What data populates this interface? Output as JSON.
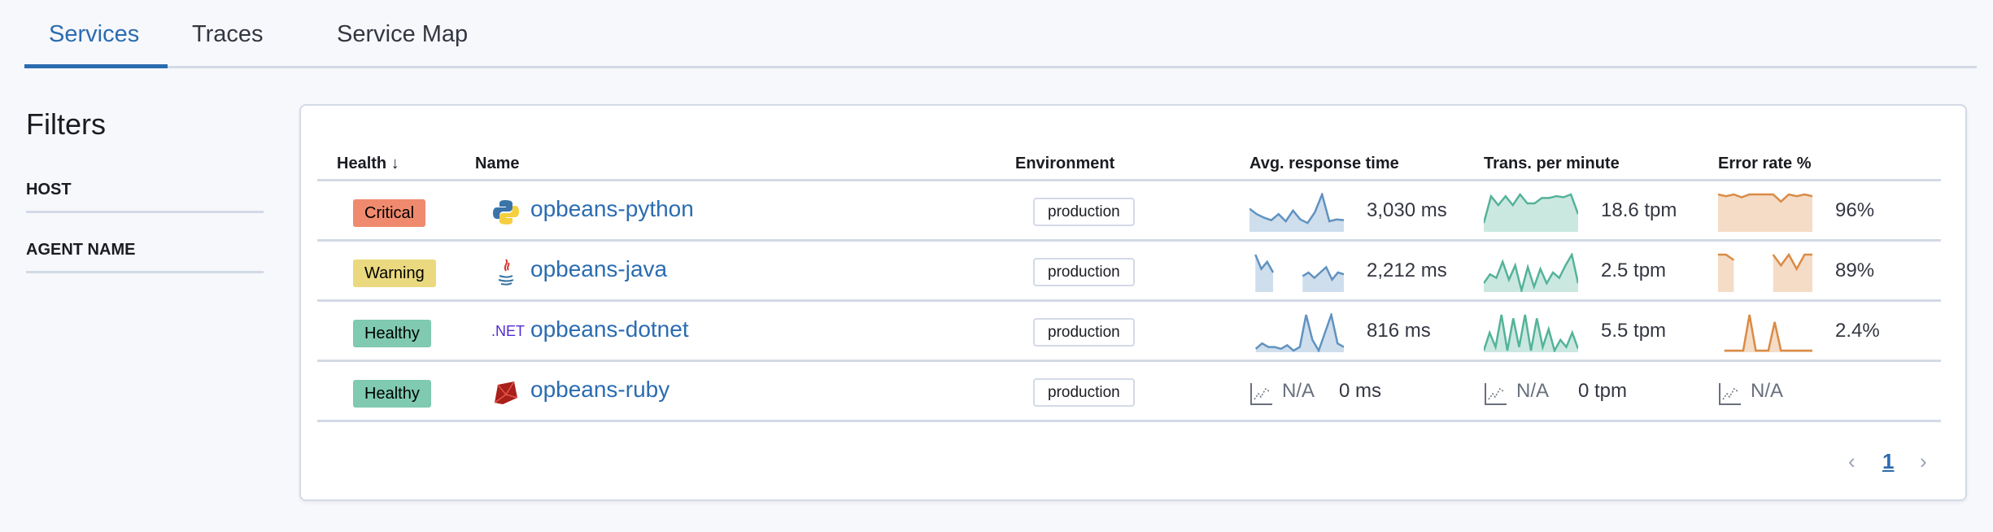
{
  "tabs": [
    {
      "label": "Services",
      "active": true
    },
    {
      "label": "Traces"
    },
    {
      "label": "Service Map"
    }
  ],
  "filters": {
    "title": "Filters",
    "items": [
      "HOST",
      "AGENT NAME"
    ]
  },
  "table": {
    "headers": {
      "health": "Health",
      "sort_icon": "arrow-down-icon",
      "name": "Name",
      "environment": "Environment",
      "avg": "Avg. response time",
      "tpm": "Trans. per minute",
      "err": "Error rate %"
    },
    "colors": {
      "avg": "#6092c0",
      "tpm": "#54b399",
      "err": "#da8b45",
      "critical": "#f08a6e",
      "warning": "#ebd97f",
      "healthy": "#7fcab0",
      "link": "#2b6cb0"
    },
    "rows": [
      {
        "health": "Critical",
        "health_color": "#f08a6e",
        "icon": "python-icon",
        "name": "opbeans-python",
        "environment": "production",
        "avg": "3,030 ms",
        "tpm": "18.6 tpm",
        "err": "96%",
        "avg_spark": [
          0.6,
          0.45,
          0.35,
          0.28,
          0.45,
          0.25,
          0.55,
          0.3,
          0.2,
          0.5,
          1,
          0.25,
          0.3,
          0.28
        ],
        "tpm_spark": [
          0.2,
          0.95,
          0.7,
          0.95,
          0.7,
          1,
          0.75,
          0.75,
          0.9,
          0.9,
          0.95,
          0.92,
          1,
          0.45
        ],
        "err_spark": [
          1,
          0.95,
          1,
          0.92,
          1,
          1,
          1,
          1,
          0.8,
          1,
          0.95,
          1,
          0.95
        ]
      },
      {
        "health": "Warning",
        "health_color": "#ebd97f",
        "icon": "java-icon",
        "name": "opbeans-java",
        "environment": "production",
        "avg": "2,212 ms",
        "tpm": "2.5 tpm",
        "err": "89%",
        "avg_spark": [
          null,
          1,
          0.6,
          0.8,
          0.5,
          null,
          null,
          null,
          null,
          0.4,
          0.5,
          0.35,
          0.5,
          0.65,
          0.3,
          0.5,
          0.45
        ],
        "tpm_spark": [
          0.2,
          0.45,
          0.35,
          0.8,
          0.3,
          0.7,
          0,
          0.65,
          0.1,
          0.6,
          0.2,
          0.5,
          0.35,
          0.7,
          1,
          0.2
        ],
        "err_spark": [
          1,
          1,
          0.85,
          null,
          null,
          null,
          null,
          1,
          0.7,
          1,
          0.6,
          1,
          1
        ],
        "err_gaps": true
      },
      {
        "health": "Healthy",
        "health_color": "#7fcab0",
        "icon": "dotnet-icon",
        "icon_text": ".NET",
        "name": "opbeans-dotnet",
        "environment": "production",
        "avg": "816 ms",
        "tpm": "5.5 tpm",
        "err": "2.4%",
        "avg_spark": [
          null,
          0.05,
          0.2,
          0.1,
          0.1,
          0.05,
          0.15,
          0,
          0.1,
          1,
          0.3,
          0,
          0.5,
          1,
          0.2,
          0.1
        ],
        "tpm_spark": [
          0,
          0.5,
          0.1,
          1,
          0,
          0.9,
          0.1,
          1,
          0,
          0.9,
          0.1,
          0.6,
          0,
          0.3,
          0.1,
          0.5,
          0.05
        ],
        "err_spark": [
          null,
          0,
          0,
          0,
          0,
          1,
          0,
          0,
          0,
          0.8,
          0,
          0,
          0,
          0,
          0,
          0
        ]
      },
      {
        "health": "Healthy",
        "health_color": "#7fcab0",
        "icon": "ruby-icon",
        "name": "opbeans-ruby",
        "environment": "production",
        "avg_na": "N/A",
        "avg": "0 ms",
        "tpm_na": "N/A",
        "tpm": "0 tpm",
        "err_na": "N/A"
      }
    ]
  },
  "pagination": {
    "prev": "‹",
    "current": "1",
    "next": "›"
  }
}
